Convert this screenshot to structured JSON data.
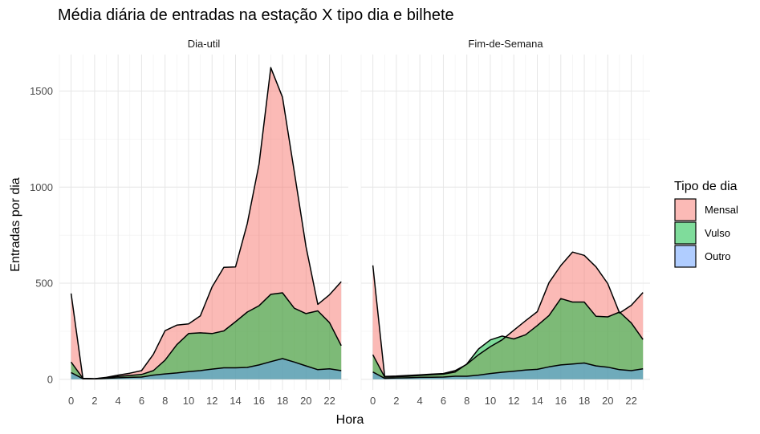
{
  "chart_data": {
    "type": "area",
    "title": "Média diária de entradas na estação X tipo dia e bilhete",
    "xlabel": "Hora",
    "ylabel": "Entradas por dia",
    "xlim": [
      -1,
      23.6
    ],
    "ylim": [
      -55,
      1690
    ],
    "x_ticks": [
      0,
      2,
      4,
      6,
      8,
      10,
      12,
      14,
      16,
      18,
      20,
      22
    ],
    "x_tick_labels": [
      "0",
      "2",
      "4",
      "6",
      "8",
      "10",
      "12",
      "14",
      "16",
      "18",
      "20",
      "22"
    ],
    "y_ticks": [
      0,
      500,
      1000,
      1500
    ],
    "y_tick_labels": [
      "0",
      "500",
      "1000",
      "1500"
    ],
    "grid": true,
    "legend": {
      "title": "Tipo de dia",
      "position": "right",
      "entries": [
        {
          "label": "Mensal",
          "color": "#F8766D"
        },
        {
          "label": "Vulso",
          "color": "#00BA38"
        },
        {
          "label": "Outro",
          "color": "#619CFF"
        }
      ]
    },
    "panels": [
      {
        "label": "Dia-util",
        "x": [
          0,
          1,
          2,
          3,
          4,
          5,
          6,
          7,
          8,
          9,
          10,
          11,
          12,
          13,
          14,
          15,
          16,
          17,
          18,
          19,
          20,
          21,
          22,
          23
        ],
        "series": [
          {
            "name": "Mensal",
            "values": [
              447,
              5,
              3,
              10,
              22,
              32,
              45,
              130,
              253,
              282,
              288,
              330,
              480,
              583,
              585,
              810,
              1120,
              1622,
              1468,
              1080,
              690,
              390,
              440,
              508
            ]
          },
          {
            "name": "Vulso",
            "values": [
              90,
              5,
              3,
              8,
              15,
              20,
              25,
              45,
              100,
              180,
              238,
              242,
              238,
              252,
              300,
              350,
              383,
              442,
              450,
              370,
              342,
              356,
              295,
              175
            ]
          },
          {
            "name": "Outro",
            "values": [
              35,
              3,
              2,
              5,
              8,
              10,
              12,
              22,
              28,
              33,
              40,
              45,
              53,
              60,
              60,
              62,
              75,
              92,
              108,
              90,
              70,
              50,
              55,
              45
            ]
          }
        ]
      },
      {
        "label": "Fim-de-Semana",
        "x": [
          0,
          1,
          2,
          3,
          4,
          5,
          6,
          7,
          8,
          9,
          10,
          11,
          12,
          13,
          14,
          15,
          16,
          17,
          18,
          19,
          20,
          21,
          22,
          23
        ],
        "series": [
          {
            "name": "Mensal",
            "values": [
              593,
              15,
              17,
              20,
              23,
              27,
              30,
              45,
              78,
              128,
              170,
              205,
              255,
              305,
              352,
              503,
              592,
              662,
              645,
              585,
              498,
              345,
              385,
              452
            ]
          },
          {
            "name": "Vulso",
            "values": [
              128,
              12,
              14,
              16,
              20,
              24,
              27,
              38,
              80,
              158,
              205,
              225,
              210,
              232,
              280,
              332,
              420,
              402,
              402,
              328,
              325,
              350,
              293,
              207
            ]
          },
          {
            "name": "Outro",
            "values": [
              38,
              5,
              7,
              8,
              10,
              11,
              12,
              16,
              16,
              22,
              30,
              37,
              42,
              48,
              52,
              65,
              75,
              80,
              85,
              70,
              63,
              50,
              45,
              55
            ]
          }
        ]
      }
    ]
  }
}
